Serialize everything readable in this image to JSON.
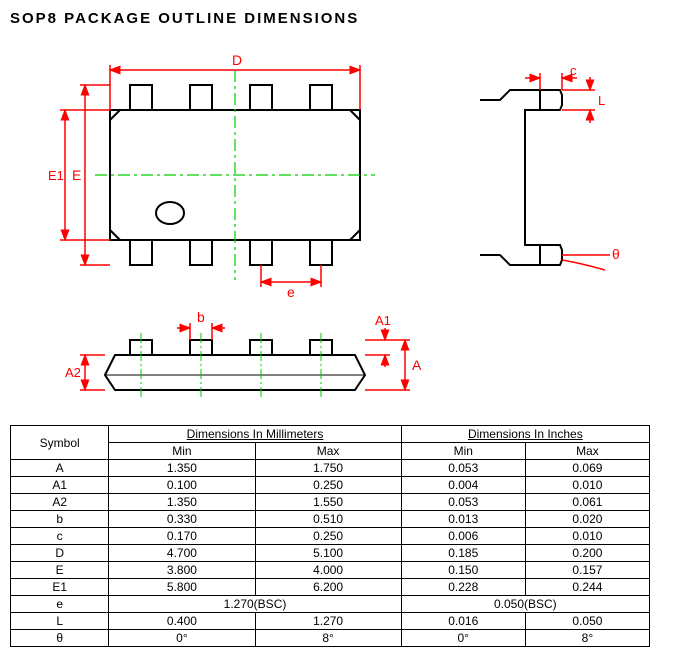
{
  "title": "SOP8 PACKAGE OUTLINE DIMENSIONS",
  "diagram": {
    "stroke_main": "#000000",
    "stroke_dim": "#ff0000",
    "stroke_center": "#00cc00",
    "stroke_w_main": 2,
    "stroke_w_dim": 1.5,
    "dim_labels": {
      "D": "D",
      "E": "E",
      "E1": "E1",
      "e": "e",
      "b": "b",
      "A": "A",
      "A1": "A1",
      "A2": "A2",
      "c": "c",
      "L": "L",
      "theta": "θ"
    }
  },
  "table": {
    "header_symbol": "Symbol",
    "header_mm": "Dimensions In Millimeters",
    "header_in": "Dimensions In Inches",
    "header_min": "Min",
    "header_max": "Max",
    "bsc_mm": "1.270(BSC)",
    "bsc_in": "0.050(BSC)",
    "rows": [
      {
        "sym": "A",
        "mm_min": "1.350",
        "mm_max": "1.750",
        "in_min": "0.053",
        "in_max": "0.069"
      },
      {
        "sym": "A1",
        "mm_min": "0.100",
        "mm_max": "0.250",
        "in_min": "0.004",
        "in_max": "0.010"
      },
      {
        "sym": "A2",
        "mm_min": "1.350",
        "mm_max": "1.550",
        "in_min": "0.053",
        "in_max": "0.061"
      },
      {
        "sym": "b",
        "mm_min": "0.330",
        "mm_max": "0.510",
        "in_min": "0.013",
        "in_max": "0.020"
      },
      {
        "sym": "c",
        "mm_min": "0.170",
        "mm_max": "0.250",
        "in_min": "0.006",
        "in_max": "0.010"
      },
      {
        "sym": "D",
        "mm_min": "4.700",
        "mm_max": "5.100",
        "in_min": "0.185",
        "in_max": "0.200"
      },
      {
        "sym": "E",
        "mm_min": "3.800",
        "mm_max": "4.000",
        "in_min": "0.150",
        "in_max": "0.157"
      },
      {
        "sym": "E1",
        "mm_min": "5.800",
        "mm_max": "6.200",
        "in_min": "0.228",
        "in_max": "0.244"
      }
    ],
    "row_e": {
      "sym": "e"
    },
    "rows_tail": [
      {
        "sym": "L",
        "mm_min": "0.400",
        "mm_max": "1.270",
        "in_min": "0.016",
        "in_max": "0.050"
      },
      {
        "sym": "θ",
        "mm_min": "0°",
        "mm_max": "8°",
        "in_min": "0°",
        "in_max": "8°"
      }
    ]
  }
}
